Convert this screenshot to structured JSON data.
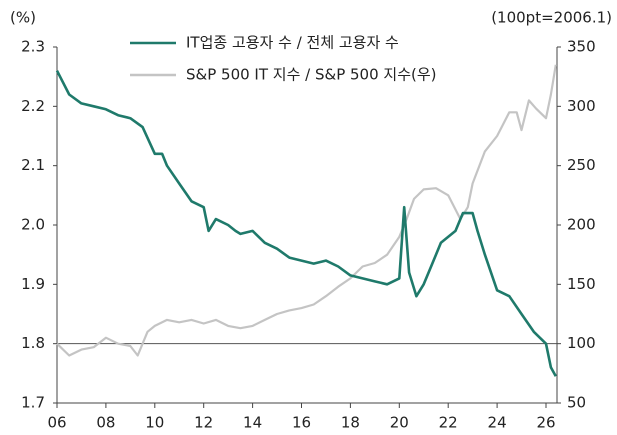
{
  "chart_data": {
    "type": "line",
    "y_label": "(%)",
    "y2_label": "(100pt=2006.1)",
    "xlim": [
      2006,
      2026.45
    ],
    "xticks": [
      {
        "value": 2006,
        "label": "06"
      },
      {
        "value": 2008,
        "label": "08"
      },
      {
        "value": 2010,
        "label": "10"
      },
      {
        "value": 2012,
        "label": "12"
      },
      {
        "value": 2014,
        "label": "14"
      },
      {
        "value": 2016,
        "label": "16"
      },
      {
        "value": 2018,
        "label": "18"
      },
      {
        "value": 2020,
        "label": "20"
      },
      {
        "value": 2022,
        "label": "22"
      },
      {
        "value": 2024,
        "label": "24"
      },
      {
        "value": 2026,
        "label": "26"
      }
    ],
    "ylim": [
      1.7,
      2.3
    ],
    "yticks": [
      1.7,
      1.8,
      1.9,
      {
        "value": 2.0,
        "label": "2.0"
      },
      2.1,
      2.2,
      2.3
    ],
    "y2lim": [
      50,
      350
    ],
    "y2ticks": [
      50,
      100,
      150,
      200,
      250,
      300,
      350
    ],
    "reference_line_y2": 100,
    "series": [
      {
        "name": "IT업종 고용자 수 / 전체 고용자 수",
        "color": "#1f7a6b",
        "axis": "y",
        "x": [
          2006.0,
          2006.5,
          2007.0,
          2007.5,
          2008.0,
          2008.5,
          2009.0,
          2009.5,
          2010.0,
          2010.3,
          2010.5,
          2011.0,
          2011.5,
          2012.0,
          2012.2,
          2012.5,
          2013.0,
          2013.3,
          2013.5,
          2014.0,
          2014.5,
          2015.0,
          2015.5,
          2016.0,
          2016.5,
          2017.0,
          2017.5,
          2018.0,
          2018.5,
          2019.0,
          2019.5,
          2020.0,
          2020.2,
          2020.4,
          2020.7,
          2021.0,
          2021.3,
          2021.7,
          2022.3,
          2022.6,
          2023.0,
          2023.2,
          2023.5,
          2024.0,
          2024.5,
          2025.0,
          2025.5,
          2026.0,
          2026.2,
          2026.4
        ],
        "values": [
          2.26,
          2.22,
          2.205,
          2.2,
          2.195,
          2.185,
          2.18,
          2.165,
          2.12,
          2.12,
          2.1,
          2.07,
          2.04,
          2.03,
          1.99,
          2.01,
          2.0,
          1.99,
          1.985,
          1.99,
          1.97,
          1.96,
          1.945,
          1.94,
          1.935,
          1.94,
          1.93,
          1.915,
          1.91,
          1.905,
          1.9,
          1.91,
          2.03,
          1.92,
          1.88,
          1.9,
          1.93,
          1.97,
          1.99,
          2.02,
          2.02,
          1.99,
          1.95,
          1.89,
          1.88,
          1.85,
          1.82,
          1.8,
          1.76,
          1.745
        ]
      },
      {
        "name": "S&P 500 IT 지수 / S&P 500 지수(우)",
        "color": "#c4c4c4",
        "axis": "y2",
        "x": [
          2006.0,
          2006.5,
          2007.0,
          2007.5,
          2008.0,
          2008.5,
          2009.0,
          2009.3,
          2009.7,
          2010.0,
          2010.5,
          2011.0,
          2011.5,
          2012.0,
          2012.5,
          2013.0,
          2013.5,
          2014.0,
          2014.5,
          2015.0,
          2015.5,
          2016.0,
          2016.5,
          2017.0,
          2017.5,
          2018.0,
          2018.5,
          2019.0,
          2019.5,
          2020.0,
          2020.3,
          2020.6,
          2021.0,
          2021.5,
          2022.0,
          2022.5,
          2022.8,
          2023.0,
          2023.5,
          2024.0,
          2024.5,
          2024.8,
          2025.0,
          2025.3,
          2025.6,
          2026.0,
          2026.2,
          2026.4
        ],
        "values": [
          100,
          90,
          95,
          97,
          105,
          100,
          98,
          90,
          110,
          115,
          120,
          118,
          120,
          117,
          120,
          115,
          113,
          115,
          120,
          125,
          128,
          130,
          133,
          140,
          148,
          155,
          165,
          168,
          175,
          190,
          205,
          222,
          230,
          231,
          225,
          205,
          215,
          235,
          262,
          275,
          295,
          295,
          280,
          305,
          298,
          290,
          310,
          335
        ]
      }
    ]
  }
}
